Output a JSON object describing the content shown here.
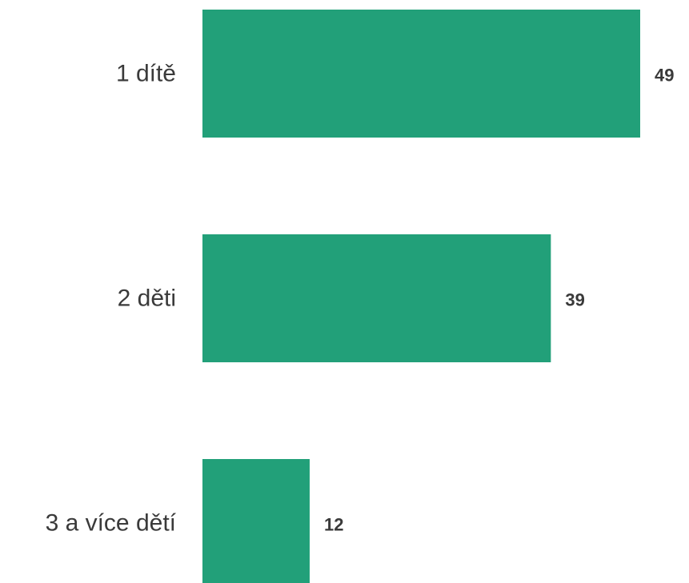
{
  "chart_data": {
    "type": "bar",
    "orientation": "horizontal",
    "categories": [
      "1 dítě",
      "2 děti",
      "3 a více dětí"
    ],
    "values": [
      49,
      39,
      12
    ],
    "title": "",
    "xlabel": "",
    "ylabel": "",
    "xlim": [
      0,
      49
    ],
    "grid": false,
    "legend": "none",
    "bar_color": "#22a079",
    "text_color": "#3a3a3a"
  }
}
